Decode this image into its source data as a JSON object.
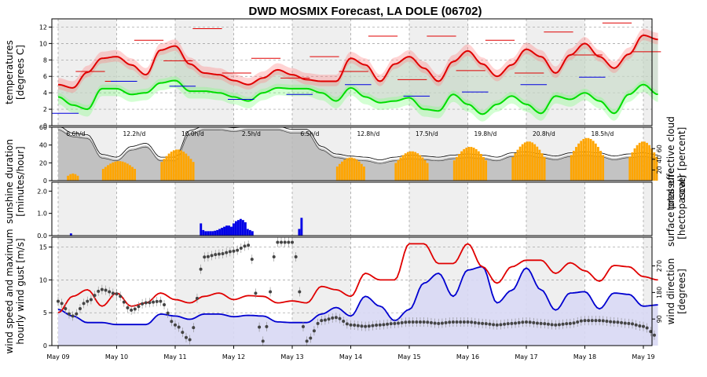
{
  "title": "DWD MOSMIX Forecast, LA DOLE (06702)",
  "x_dates": [
    "May 09",
    "May 10",
    "May 11",
    "May 12",
    "May 13",
    "May 14",
    "May 15",
    "May 16",
    "May 17",
    "May 18",
    "May 19"
  ],
  "chart_data": [
    {
      "type": "line",
      "panel": "temperature",
      "ylabel": [
        "temperatures",
        "[degrees C]"
      ],
      "ylim": [
        0,
        13
      ],
      "yticks": [
        0,
        2,
        4,
        6,
        8,
        10,
        12
      ],
      "series": [
        {
          "name": "temperature",
          "color": "#e00000",
          "x": [
            0,
            0.25,
            0.5,
            0.75,
            1,
            1.25,
            1.5,
            1.75,
            2,
            2.25,
            2.5,
            2.75,
            3,
            3.25,
            3.5,
            3.75,
            4,
            4.25,
            4.5,
            4.75,
            5,
            5.25,
            5.5,
            5.75,
            6,
            6.25,
            6.5,
            6.75,
            7,
            7.25,
            7.5,
            7.75,
            8,
            8.25,
            8.5,
            8.75,
            9,
            9.25,
            9.5,
            9.75,
            10,
            10.25
          ],
          "y": [
            5,
            4.6,
            6.5,
            8.2,
            8.4,
            7.4,
            6.2,
            9.2,
            9.7,
            7.5,
            6.4,
            6.2,
            5.5,
            5,
            5.8,
            6.8,
            6.2,
            5.6,
            5.4,
            5.4,
            8.2,
            7.4,
            5.4,
            7.5,
            8.4,
            7,
            5.4,
            7.8,
            9.1,
            7.5,
            6,
            7.4,
            9.3,
            8.4,
            6.4,
            8.6,
            10,
            8.4,
            7,
            8.7,
            11,
            10.5
          ]
        },
        {
          "name": "dewpoint",
          "color": "#00dd00",
          "x": [
            0,
            0.25,
            0.5,
            0.75,
            1,
            1.25,
            1.5,
            1.75,
            2,
            2.25,
            2.5,
            2.75,
            3,
            3.25,
            3.5,
            3.75,
            4,
            4.25,
            4.5,
            4.75,
            5,
            5.25,
            5.5,
            5.75,
            6,
            6.25,
            6.5,
            6.75,
            7,
            7.25,
            7.5,
            7.75,
            8,
            8.25,
            8.5,
            8.75,
            9,
            9.25,
            9.5,
            9.75,
            10,
            10.25
          ],
          "y": [
            3.5,
            2.5,
            2,
            4.5,
            4.5,
            3.8,
            4,
            5.2,
            5.5,
            4.2,
            4.2,
            4,
            3.5,
            3,
            4,
            4.6,
            4.5,
            4.5,
            4,
            3,
            4.6,
            3.5,
            2.8,
            3,
            3.4,
            2,
            1.8,
            3.8,
            2.6,
            1.4,
            2.6,
            3.6,
            2.6,
            1.5,
            3.6,
            3.2,
            4,
            3,
            1.5,
            3.8,
            5,
            3.8
          ]
        }
      ],
      "daily_max": [
        6.6,
        10.4,
        11.8,
        8.2,
        8.4,
        10.9,
        10.9,
        10.4,
        11.4,
        12.5
      ],
      "daily_min": [
        5.4,
        7.9,
        6.4,
        5.8,
        6.6,
        5.6,
        6.7,
        6.4,
        8.6,
        9.0
      ],
      "daily_mean": [
        1.5,
        5.4,
        4.8,
        3.2,
        3.8,
        5.0,
        3.6,
        4.1,
        5.0,
        5.9
      ]
    },
    {
      "type": "bar",
      "panel": "sunshine_cloud",
      "ylabel": [
        "sunshine duration",
        "[minutes/hour]"
      ],
      "ylabel_right": [
        "total effective cloud",
        "cover [percent]"
      ],
      "ylim": [
        0,
        60
      ],
      "yticks": [
        0,
        20,
        40,
        60
      ],
      "yticks_right": [
        20,
        40,
        60
      ],
      "sunshine_blocks": [
        {
          "start": 0.15,
          "end": 0.35,
          "peak": 8
        },
        {
          "start": 0.75,
          "end": 1.35,
          "peak": 22
        },
        {
          "start": 1.75,
          "end": 2.35,
          "peak": 35
        },
        {
          "start": 4.75,
          "end": 5.25,
          "peak": 26
        },
        {
          "start": 5.75,
          "end": 6.35,
          "peak": 33
        },
        {
          "start": 6.75,
          "end": 7.35,
          "peak": 38
        },
        {
          "start": 7.75,
          "end": 8.35,
          "peak": 44
        },
        {
          "start": 8.75,
          "end": 9.35,
          "peak": 48
        },
        {
          "start": 9.75,
          "end": 10.25,
          "peak": 44
        }
      ],
      "cloud_cover": {
        "x": [
          0,
          0.25,
          0.5,
          0.75,
          1,
          1.25,
          1.5,
          1.75,
          2,
          2.25,
          2.5,
          2.75,
          3,
          3.25,
          3.5,
          3.75,
          4,
          4.25,
          4.5,
          4.75,
          5,
          5.25,
          5.5,
          5.75,
          6,
          6.25,
          6.5,
          6.75,
          7,
          7.25,
          7.5,
          7.75,
          8,
          8.25,
          8.5,
          8.75,
          9,
          9.25,
          9.5,
          9.75,
          10,
          10.25
        ],
        "y": [
          98,
          85,
          82,
          45,
          40,
          60,
          66,
          40,
          40,
          90,
          98,
          98,
          95,
          98,
          98,
          98,
          92,
          92,
          60,
          46,
          42,
          40,
          35,
          40,
          44,
          42,
          40,
          44,
          46,
          44,
          40,
          48,
          50,
          46,
          42,
          48,
          50,
          48,
          42,
          46,
          48,
          44
        ]
      },
      "annotations": [
        {
          "x": 0.3,
          "text": "6.6h/d"
        },
        {
          "x": 1.3,
          "text": "12.2h/d"
        },
        {
          "x": 2.3,
          "text": "10.0h/d"
        },
        {
          "x": 3.3,
          "text": "2.5h/d"
        },
        {
          "x": 4.3,
          "text": "6.5h/d"
        },
        {
          "x": 5.3,
          "text": "12.8h/d"
        },
        {
          "x": 6.3,
          "text": "17.5h/d"
        },
        {
          "x": 7.3,
          "text": "19.8h/d"
        },
        {
          "x": 8.3,
          "text": "20.8h/d"
        },
        {
          "x": 9.3,
          "text": "18.5h/d"
        }
      ]
    },
    {
      "type": "bar",
      "panel": "precipitation",
      "ylim": [
        0,
        2.4
      ],
      "yticks": [
        0,
        1,
        2
      ],
      "yticklabels": [
        "0.0",
        "1.0",
        "2.0"
      ],
      "ylabel_right": [
        "surface pressure",
        "[hectopascal]"
      ],
      "bars": [
        {
          "x": 0.2,
          "y": 0.1
        },
        {
          "x": 2.42,
          "y": 0.55
        },
        {
          "x": 2.46,
          "y": 0.25
        },
        {
          "x": 2.5,
          "y": 0.2
        },
        {
          "x": 2.54,
          "y": 0.2
        },
        {
          "x": 2.58,
          "y": 0.2
        },
        {
          "x": 2.62,
          "y": 0.2
        },
        {
          "x": 2.66,
          "y": 0.22
        },
        {
          "x": 2.7,
          "y": 0.25
        },
        {
          "x": 2.74,
          "y": 0.3
        },
        {
          "x": 2.78,
          "y": 0.35
        },
        {
          "x": 2.82,
          "y": 0.4
        },
        {
          "x": 2.86,
          "y": 0.45
        },
        {
          "x": 2.9,
          "y": 0.45
        },
        {
          "x": 2.94,
          "y": 0.4
        },
        {
          "x": 2.98,
          "y": 0.55
        },
        {
          "x": 3.02,
          "y": 0.65
        },
        {
          "x": 3.06,
          "y": 0.7
        },
        {
          "x": 3.1,
          "y": 0.75
        },
        {
          "x": 3.14,
          "y": 0.7
        },
        {
          "x": 3.18,
          "y": 0.6
        },
        {
          "x": 3.22,
          "y": 0.3
        },
        {
          "x": 3.26,
          "y": 0.25
        },
        {
          "x": 3.3,
          "y": 0.2
        },
        {
          "x": 4.1,
          "y": 0.3
        },
        {
          "x": 4.14,
          "y": 0.8
        }
      ]
    },
    {
      "type": "line",
      "panel": "wind",
      "ylabel": [
        "wind speed and maximum",
        "hourly wind gust [m/s]"
      ],
      "ylabel_right": [
        "wind direction",
        "[degrees]"
      ],
      "ylim": [
        0,
        16.5
      ],
      "yticks": [
        0,
        5,
        10,
        15
      ],
      "yticks_right": [
        90,
        180,
        270
      ],
      "series": [
        {
          "name": "wind speed",
          "color": "#0000d0",
          "x": [
            0,
            0.25,
            0.5,
            0.75,
            1,
            1.25,
            1.5,
            1.75,
            2,
            2.25,
            2.5,
            2.75,
            3,
            3.25,
            3.5,
            3.75,
            4,
            4.25,
            4.5,
            4.75,
            5,
            5.25,
            5.5,
            5.75,
            6,
            6.25,
            6.5,
            6.75,
            7,
            7.25,
            7.5,
            7.75,
            8,
            8.25,
            8.5,
            8.75,
            9,
            9.25,
            9.5,
            9.75,
            10,
            10.25
          ],
          "y": [
            5.5,
            4.5,
            3.5,
            3.5,
            3.2,
            3.2,
            3.2,
            4.8,
            4.5,
            4,
            4.8,
            4.8,
            4.4,
            4.6,
            4.5,
            3.6,
            3.5,
            3.5,
            4.8,
            5.8,
            4.5,
            7.5,
            6,
            3.8,
            5.5,
            9.5,
            11,
            7.5,
            11.5,
            12,
            6.5,
            8.4,
            11.8,
            8.5,
            5.4,
            8,
            8.2,
            5.6,
            8,
            7.8,
            6,
            6.2
          ]
        },
        {
          "name": "wind gust",
          "color": "#e00000",
          "x": [
            0,
            0.25,
            0.5,
            0.75,
            1,
            1.25,
            1.5,
            1.75,
            2,
            2.25,
            2.5,
            2.75,
            3,
            3.25,
            3.5,
            3.75,
            4,
            4.25,
            4.5,
            4.75,
            5,
            5.25,
            5.5,
            5.75,
            6,
            6.25,
            6.5,
            6.75,
            7,
            7.25,
            7.5,
            7.75,
            8,
            8.25,
            8.5,
            8.75,
            9,
            9.25,
            9.5,
            9.75,
            10,
            10.25
          ],
          "y": [
            5,
            7.5,
            8.5,
            6,
            8,
            6,
            6.5,
            8,
            7,
            6.5,
            7.5,
            8,
            7,
            7.6,
            7.5,
            6.5,
            6.8,
            6.5,
            9,
            8.5,
            7.5,
            11,
            10,
            10,
            15.5,
            15.5,
            12.5,
            12.5,
            15.5,
            12,
            9.5,
            12,
            13,
            13,
            11,
            12.6,
            11.4,
            9.8,
            12.2,
            12,
            10.5,
            10
          ]
        }
      ],
      "direction_x": [
        0,
        0.25,
        0.5,
        0.75,
        1,
        1.25,
        1.5,
        1.75,
        2,
        2.25,
        2.5,
        2.75,
        3,
        3.25,
        3.5,
        3.75,
        4,
        4.25,
        4.5,
        4.75,
        5,
        5.25,
        5.5,
        5.75,
        6,
        6.25,
        6.5,
        6.75,
        7,
        7.25,
        7.5,
        7.75,
        8,
        8.25,
        8.5,
        8.75,
        9,
        9.25,
        9.5,
        9.75,
        10,
        10.25
      ],
      "direction_deg": [
        150,
        100,
        150,
        190,
        175,
        120,
        145,
        150,
        70,
        20,
        300,
        310,
        320,
        340,
        15,
        350,
        350,
        15,
        85,
        95,
        70,
        65,
        70,
        75,
        80,
        80,
        75,
        80,
        80,
        75,
        70,
        75,
        80,
        75,
        70,
        75,
        85,
        85,
        80,
        75,
        65,
        30
      ],
      "light_shade": "#d8d8f4"
    }
  ]
}
